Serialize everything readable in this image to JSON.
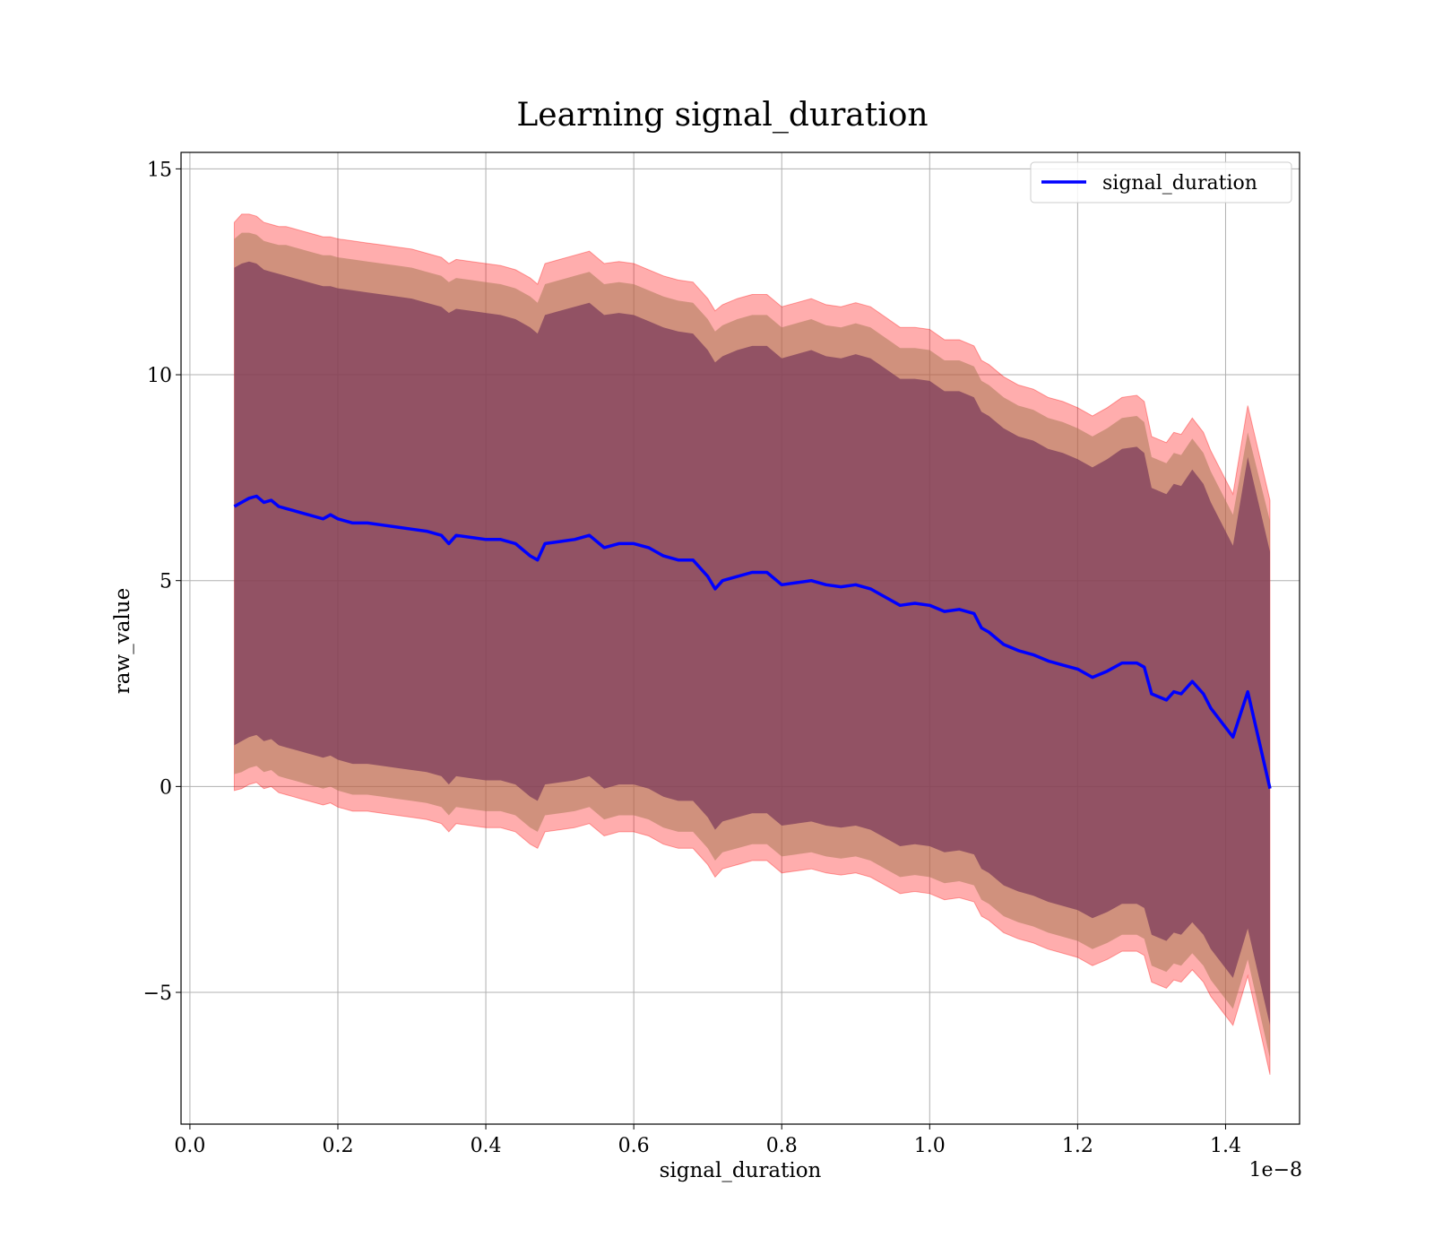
{
  "chart_data": {
    "type": "line",
    "title": "Learning signal_duration",
    "xlabel": "signal_duration",
    "ylabel": "raw_value",
    "x_offset_label": "1e−8",
    "xlim": [
      -0.012,
      1.5
    ],
    "ylim": [
      -8.2,
      15.4
    ],
    "x_ticks": [
      0.0,
      0.2,
      0.4,
      0.6,
      0.8,
      1.0,
      1.2,
      1.4
    ],
    "x_tick_labels": [
      "0.0",
      "0.2",
      "0.4",
      "0.6",
      "0.8",
      "1.0",
      "1.2",
      "1.4"
    ],
    "y_ticks": [
      -5,
      0,
      5,
      10,
      15
    ],
    "y_tick_labels": [
      "−5",
      "0",
      "5",
      "10",
      "15"
    ],
    "grid": true,
    "legend": {
      "position": "top-right",
      "entries": [
        "signal_duration"
      ]
    },
    "colors": {
      "line": "#0000ff",
      "band_outer": "#ff0000",
      "band_middle": "#aa7a55",
      "band_inner": "#7a3a5a"
    },
    "series": [
      {
        "name": "signal_duration",
        "x": [
          0.06,
          0.07,
          0.08,
          0.09,
          0.1,
          0.11,
          0.12,
          0.13,
          0.14,
          0.15,
          0.16,
          0.17,
          0.18,
          0.19,
          0.2,
          0.22,
          0.24,
          0.26,
          0.28,
          0.3,
          0.32,
          0.34,
          0.35,
          0.36,
          0.38,
          0.4,
          0.42,
          0.44,
          0.46,
          0.47,
          0.48,
          0.5,
          0.52,
          0.54,
          0.56,
          0.58,
          0.6,
          0.62,
          0.64,
          0.66,
          0.68,
          0.7,
          0.71,
          0.72,
          0.74,
          0.76,
          0.78,
          0.8,
          0.82,
          0.84,
          0.86,
          0.88,
          0.9,
          0.92,
          0.94,
          0.96,
          0.98,
          1.0,
          1.02,
          1.04,
          1.06,
          1.07,
          1.08,
          1.1,
          1.12,
          1.14,
          1.16,
          1.18,
          1.2,
          1.22,
          1.24,
          1.26,
          1.28,
          1.29,
          1.3,
          1.32,
          1.33,
          1.34,
          1.355,
          1.37,
          1.38,
          1.41,
          1.43,
          1.46
        ],
        "y": [
          6.8,
          6.9,
          7.0,
          7.05,
          6.9,
          6.95,
          6.8,
          6.75,
          6.7,
          6.65,
          6.6,
          6.55,
          6.5,
          6.6,
          6.5,
          6.4,
          6.4,
          6.35,
          6.3,
          6.25,
          6.2,
          6.1,
          5.9,
          6.1,
          6.05,
          6.0,
          6.0,
          5.9,
          5.6,
          5.5,
          5.9,
          5.95,
          6.0,
          6.1,
          5.8,
          5.9,
          5.9,
          5.8,
          5.6,
          5.5,
          5.5,
          5.1,
          4.8,
          5.0,
          5.1,
          5.2,
          5.2,
          4.9,
          4.95,
          5.0,
          4.9,
          4.85,
          4.9,
          4.8,
          4.6,
          4.4,
          4.45,
          4.4,
          4.25,
          4.3,
          4.2,
          3.85,
          3.75,
          3.45,
          3.3,
          3.2,
          3.05,
          2.95,
          2.85,
          2.65,
          2.8,
          3.0,
          3.0,
          2.9,
          2.25,
          2.1,
          2.3,
          2.25,
          2.55,
          2.25,
          1.9,
          1.2,
          2.3,
          -0.05
        ],
        "upper_outer": [
          13.7,
          13.9,
          13.9,
          13.85,
          13.7,
          13.65,
          13.6,
          13.6,
          13.55,
          13.5,
          13.45,
          13.4,
          13.35,
          13.35,
          13.3,
          13.25,
          13.2,
          13.15,
          13.1,
          13.05,
          12.95,
          12.85,
          12.7,
          12.8,
          12.75,
          12.7,
          12.65,
          12.55,
          12.35,
          12.2,
          12.7,
          12.8,
          12.9,
          13.0,
          12.7,
          12.75,
          12.7,
          12.55,
          12.4,
          12.3,
          12.25,
          11.85,
          11.55,
          11.7,
          11.85,
          11.95,
          11.95,
          11.65,
          11.75,
          11.85,
          11.7,
          11.65,
          11.75,
          11.65,
          11.4,
          11.15,
          11.15,
          11.1,
          10.85,
          10.85,
          10.7,
          10.35,
          10.25,
          9.95,
          9.75,
          9.65,
          9.45,
          9.35,
          9.2,
          9.0,
          9.2,
          9.45,
          9.5,
          9.35,
          8.5,
          8.35,
          8.6,
          8.55,
          8.95,
          8.6,
          8.15,
          7.1,
          9.25,
          6.95
        ],
        "lower_outer": [
          -0.1,
          -0.05,
          0.05,
          0.1,
          -0.05,
          0.0,
          -0.15,
          -0.2,
          -0.25,
          -0.3,
          -0.35,
          -0.4,
          -0.45,
          -0.4,
          -0.5,
          -0.6,
          -0.6,
          -0.65,
          -0.7,
          -0.75,
          -0.8,
          -0.9,
          -1.1,
          -0.9,
          -0.95,
          -1.0,
          -1.0,
          -1.1,
          -1.4,
          -1.5,
          -1.1,
          -1.05,
          -1.0,
          -0.9,
          -1.2,
          -1.1,
          -1.1,
          -1.2,
          -1.4,
          -1.5,
          -1.5,
          -1.9,
          -2.2,
          -2.0,
          -1.9,
          -1.8,
          -1.8,
          -2.1,
          -2.05,
          -2.0,
          -2.1,
          -2.15,
          -2.1,
          -2.2,
          -2.4,
          -2.6,
          -2.55,
          -2.6,
          -2.75,
          -2.7,
          -2.8,
          -3.15,
          -3.25,
          -3.55,
          -3.7,
          -3.8,
          -3.95,
          -4.05,
          -4.15,
          -4.35,
          -4.2,
          -4.0,
          -4.0,
          -4.1,
          -4.75,
          -4.9,
          -4.7,
          -4.75,
          -4.45,
          -4.75,
          -5.1,
          -5.8,
          -4.6,
          -7.0
        ],
        "upper_middle": [
          13.3,
          13.45,
          13.45,
          13.4,
          13.25,
          13.2,
          13.15,
          13.15,
          13.1,
          13.05,
          13.0,
          12.95,
          12.9,
          12.9,
          12.85,
          12.8,
          12.75,
          12.7,
          12.65,
          12.6,
          12.5,
          12.4,
          12.25,
          12.35,
          12.3,
          12.25,
          12.2,
          12.1,
          11.9,
          11.75,
          12.2,
          12.3,
          12.4,
          12.5,
          12.2,
          12.25,
          12.2,
          12.05,
          11.9,
          11.8,
          11.75,
          11.35,
          11.05,
          11.2,
          11.35,
          11.45,
          11.45,
          11.15,
          11.25,
          11.35,
          11.2,
          11.15,
          11.25,
          11.15,
          10.9,
          10.65,
          10.65,
          10.6,
          10.35,
          10.35,
          10.2,
          9.85,
          9.75,
          9.45,
          9.25,
          9.15,
          8.95,
          8.85,
          8.7,
          8.5,
          8.7,
          8.95,
          9.0,
          8.85,
          8.0,
          7.85,
          8.1,
          8.05,
          8.45,
          8.1,
          7.65,
          6.6,
          8.6,
          6.45
        ],
        "lower_middle": [
          0.3,
          0.35,
          0.45,
          0.5,
          0.35,
          0.4,
          0.25,
          0.2,
          0.15,
          0.1,
          0.05,
          0.0,
          -0.05,
          0.0,
          -0.1,
          -0.2,
          -0.2,
          -0.25,
          -0.3,
          -0.35,
          -0.4,
          -0.5,
          -0.7,
          -0.5,
          -0.55,
          -0.6,
          -0.6,
          -0.7,
          -1.0,
          -1.1,
          -0.7,
          -0.65,
          -0.6,
          -0.5,
          -0.8,
          -0.7,
          -0.7,
          -0.8,
          -1.0,
          -1.1,
          -1.1,
          -1.5,
          -1.8,
          -1.6,
          -1.5,
          -1.4,
          -1.4,
          -1.7,
          -1.65,
          -1.6,
          -1.7,
          -1.75,
          -1.7,
          -1.8,
          -2.0,
          -2.2,
          -2.15,
          -2.2,
          -2.35,
          -2.3,
          -2.4,
          -2.75,
          -2.85,
          -3.15,
          -3.3,
          -3.4,
          -3.55,
          -3.65,
          -3.75,
          -3.95,
          -3.8,
          -3.6,
          -3.6,
          -3.7,
          -4.35,
          -4.5,
          -4.3,
          -4.35,
          -4.05,
          -4.35,
          -4.7,
          -5.4,
          -4.2,
          -6.6
        ],
        "upper_inner": [
          12.6,
          12.7,
          12.75,
          12.7,
          12.55,
          12.5,
          12.45,
          12.4,
          12.35,
          12.3,
          12.25,
          12.2,
          12.15,
          12.15,
          12.1,
          12.05,
          12.0,
          11.95,
          11.9,
          11.85,
          11.75,
          11.65,
          11.5,
          11.6,
          11.55,
          11.5,
          11.45,
          11.35,
          11.15,
          11.0,
          11.45,
          11.55,
          11.65,
          11.75,
          11.45,
          11.5,
          11.45,
          11.3,
          11.15,
          11.05,
          11.0,
          10.6,
          10.3,
          10.45,
          10.6,
          10.7,
          10.7,
          10.4,
          10.5,
          10.6,
          10.45,
          10.4,
          10.5,
          10.4,
          10.15,
          9.9,
          9.9,
          9.85,
          9.6,
          9.6,
          9.45,
          9.1,
          9.0,
          8.7,
          8.5,
          8.4,
          8.2,
          8.1,
          7.95,
          7.75,
          7.95,
          8.2,
          8.25,
          8.1,
          7.25,
          7.1,
          7.35,
          7.3,
          7.7,
          7.35,
          6.9,
          5.85,
          8.0,
          5.7
        ],
        "lower_inner": [
          1.0,
          1.1,
          1.2,
          1.25,
          1.1,
          1.15,
          1.0,
          0.95,
          0.9,
          0.85,
          0.8,
          0.75,
          0.7,
          0.75,
          0.65,
          0.55,
          0.55,
          0.5,
          0.45,
          0.4,
          0.35,
          0.25,
          0.05,
          0.25,
          0.2,
          0.15,
          0.15,
          0.05,
          -0.25,
          -0.35,
          0.05,
          0.1,
          0.15,
          0.25,
          -0.05,
          0.05,
          0.05,
          -0.05,
          -0.25,
          -0.35,
          -0.35,
          -0.75,
          -1.05,
          -0.85,
          -0.75,
          -0.65,
          -0.65,
          -0.95,
          -0.9,
          -0.85,
          -0.95,
          -1.0,
          -0.95,
          -1.05,
          -1.25,
          -1.45,
          -1.4,
          -1.45,
          -1.6,
          -1.55,
          -1.65,
          -2.0,
          -2.1,
          -2.4,
          -2.55,
          -2.65,
          -2.8,
          -2.9,
          -3.0,
          -3.2,
          -3.05,
          -2.85,
          -2.85,
          -2.95,
          -3.6,
          -3.75,
          -3.55,
          -3.6,
          -3.3,
          -3.6,
          -3.95,
          -4.65,
          -3.45,
          -5.8
        ]
      }
    ]
  }
}
